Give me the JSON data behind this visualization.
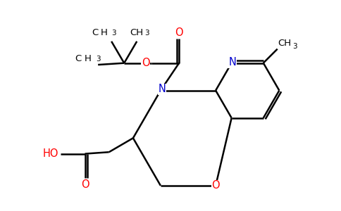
{
  "figure_size": [
    4.84,
    3.0
  ],
  "dpi": 100,
  "background_color": "#ffffff",
  "bond_color": "#000000",
  "bond_width": 1.8,
  "atom_colors": {
    "O": "#ff0000",
    "N": "#0000cd",
    "C": "#000000"
  },
  "xlim": [
    0,
    10
  ],
  "ylim": [
    0,
    6.2
  ]
}
